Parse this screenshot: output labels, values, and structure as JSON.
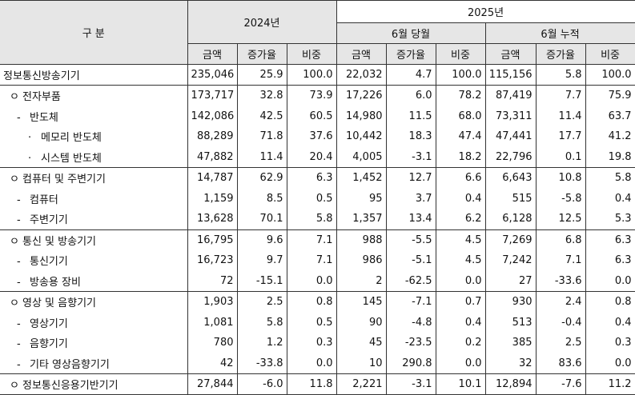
{
  "header": {
    "category": "구 분",
    "year_2024": "2024년",
    "year_2025": "2025년",
    "june_month": "6월 당월",
    "june_cumulative": "6월 누적",
    "col_amount": "금액",
    "col_growth": "증가율",
    "col_share": "비중"
  },
  "rows": [
    {
      "prefix": "",
      "label": "정보통신방송기기",
      "level": 0,
      "v2024": [
        "235,046",
        "25.9",
        "100.0"
      ],
      "vm": [
        "22,032",
        "4.7",
        "100.0"
      ],
      "vc": [
        "115,156",
        "5.8",
        "100.0"
      ]
    },
    {
      "prefix": "ㅇ",
      "label": "전자부품",
      "level": 1,
      "v2024": [
        "173,717",
        "32.8",
        "73.9"
      ],
      "vm": [
        "17,226",
        "6.0",
        "78.2"
      ],
      "vc": [
        "87,419",
        "7.7",
        "75.9"
      ]
    },
    {
      "prefix": "-",
      "label": "반도체",
      "level": 2,
      "v2024": [
        "142,086",
        "42.5",
        "60.5"
      ],
      "vm": [
        "14,980",
        "11.5",
        "68.0"
      ],
      "vc": [
        "73,311",
        "11.4",
        "63.7"
      ]
    },
    {
      "prefix": "·",
      "label": "메모리 반도체",
      "level": 3,
      "v2024": [
        "88,289",
        "71.8",
        "37.6"
      ],
      "vm": [
        "10,442",
        "18.3",
        "47.4"
      ],
      "vc": [
        "47,441",
        "17.7",
        "41.2"
      ]
    },
    {
      "prefix": "·",
      "label": "시스템 반도체",
      "level": 3,
      "v2024": [
        "47,882",
        "11.4",
        "20.4"
      ],
      "vm": [
        "4,005",
        "-3.1",
        "18.2"
      ],
      "vc": [
        "22,796",
        "0.1",
        "19.8"
      ]
    },
    {
      "prefix": "ㅇ",
      "label": "컴퓨터 및 주변기기",
      "level": 1,
      "v2024": [
        "14,787",
        "62.9",
        "6.3"
      ],
      "vm": [
        "1,452",
        "12.7",
        "6.6"
      ],
      "vc": [
        "6,643",
        "10.8",
        "5.8"
      ]
    },
    {
      "prefix": "-",
      "label": "컴퓨터",
      "level": 2,
      "v2024": [
        "1,159",
        "8.5",
        "0.5"
      ],
      "vm": [
        "95",
        "3.7",
        "0.4"
      ],
      "vc": [
        "515",
        "-5.8",
        "0.4"
      ]
    },
    {
      "prefix": "-",
      "label": "주변기기",
      "level": 2,
      "v2024": [
        "13,628",
        "70.1",
        "5.8"
      ],
      "vm": [
        "1,357",
        "13.4",
        "6.2"
      ],
      "vc": [
        "6,128",
        "12.5",
        "5.3"
      ]
    },
    {
      "prefix": "ㅇ",
      "label": "통신 및 방송기기",
      "level": 1,
      "v2024": [
        "16,795",
        "9.6",
        "7.1"
      ],
      "vm": [
        "988",
        "-5.5",
        "4.5"
      ],
      "vc": [
        "7,269",
        "6.8",
        "6.3"
      ]
    },
    {
      "prefix": "-",
      "label": "통신기기",
      "level": 2,
      "v2024": [
        "16,723",
        "9.7",
        "7.1"
      ],
      "vm": [
        "986",
        "-5.1",
        "4.5"
      ],
      "vc": [
        "7,242",
        "7.1",
        "6.3"
      ]
    },
    {
      "prefix": "-",
      "label": "방송용 장비",
      "level": 2,
      "v2024": [
        "72",
        "-15.1",
        "0.0"
      ],
      "vm": [
        "2",
        "-62.5",
        "0.0"
      ],
      "vc": [
        "27",
        "-33.6",
        "0.0"
      ]
    },
    {
      "prefix": "ㅇ",
      "label": "영상 및 음향기기",
      "level": 1,
      "v2024": [
        "1,903",
        "2.5",
        "0.8"
      ],
      "vm": [
        "145",
        "-7.1",
        "0.7"
      ],
      "vc": [
        "930",
        "2.4",
        "0.8"
      ]
    },
    {
      "prefix": "-",
      "label": "영상기기",
      "level": 2,
      "v2024": [
        "1,081",
        "5.8",
        "0.5"
      ],
      "vm": [
        "90",
        "-4.8",
        "0.4"
      ],
      "vc": [
        "513",
        "-0.4",
        "0.4"
      ]
    },
    {
      "prefix": "-",
      "label": "음향기기",
      "level": 2,
      "v2024": [
        "780",
        "1.2",
        "0.3"
      ],
      "vm": [
        "45",
        "-23.5",
        "0.2"
      ],
      "vc": [
        "385",
        "2.5",
        "0.3"
      ]
    },
    {
      "prefix": "-",
      "label": "기타 영상음향기기",
      "level": 2,
      "v2024": [
        "42",
        "-33.8",
        "0.0"
      ],
      "vm": [
        "10",
        "290.8",
        "0.0"
      ],
      "vc": [
        "32",
        "83.6",
        "0.0"
      ]
    },
    {
      "prefix": "ㅇ",
      "label": "정보통신응용기반기기",
      "level": 1,
      "v2024": [
        "27,844",
        "-6.0",
        "11.8"
      ],
      "vm": [
        "2,221",
        "-3.1",
        "10.1"
      ],
      "vc": [
        "12,894",
        "-7.6",
        "11.2"
      ]
    }
  ]
}
